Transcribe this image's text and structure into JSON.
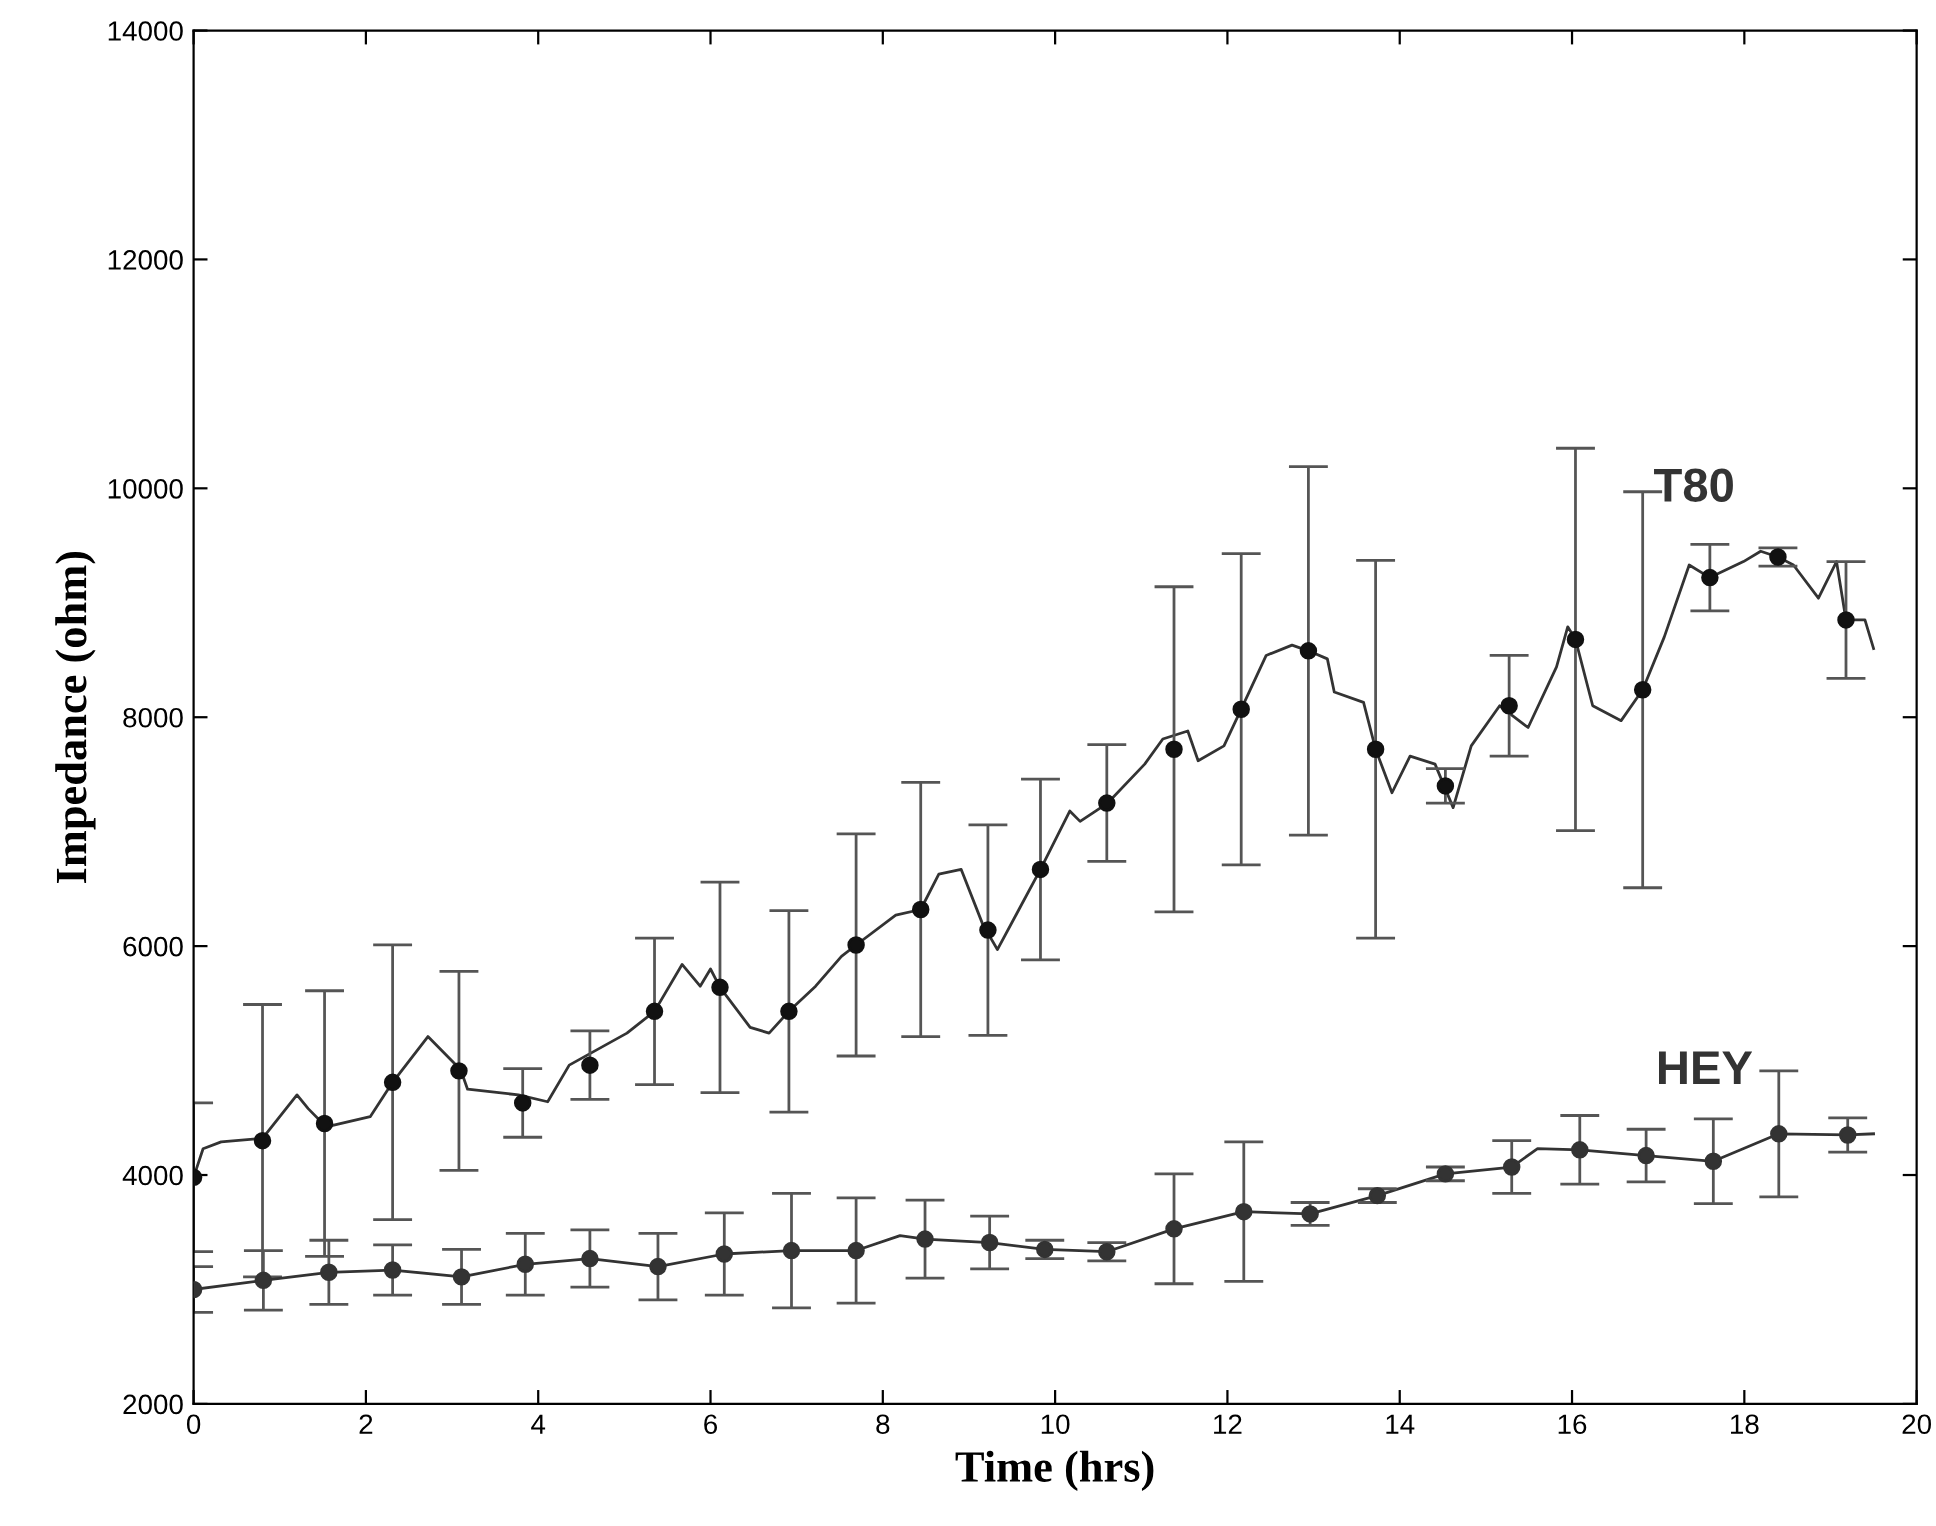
{
  "chart_data": {
    "type": "line",
    "xlabel": "Time (hrs)",
    "ylabel": "Impedance (ohm)",
    "xlim": [
      0,
      20
    ],
    "ylim": [
      2000,
      14000
    ],
    "xticks": [
      0,
      2,
      4,
      6,
      8,
      10,
      12,
      14,
      16,
      18,
      20
    ],
    "yticks": [
      2000,
      4000,
      6000,
      8000,
      10000,
      12000,
      14000
    ],
    "grid": false,
    "legend": false,
    "series": [
      {
        "name": "T80",
        "color": "#333333",
        "marker": "none",
        "x": [
          0,
          0.11,
          0.32,
          0.8,
          1.2,
          1.33,
          1.54,
          2.05,
          2.31,
          2.72,
          3.1,
          3.18,
          3.77,
          4.11,
          4.36,
          5.03,
          5.35,
          5.67,
          5.88,
          6.0,
          6.11,
          6.46,
          6.68,
          6.91,
          7.22,
          7.52,
          7.69,
          8.15,
          8.44,
          8.65,
          8.91,
          9.16,
          9.33,
          9.58,
          9.83,
          10.17,
          10.29,
          10.61,
          11.04,
          11.25,
          11.54,
          11.66,
          11.96,
          12.16,
          12.45,
          12.75,
          12.94,
          13.16,
          13.24,
          13.58,
          13.72,
          13.91,
          14.12,
          14.41,
          14.62,
          14.83,
          15.16,
          15.49,
          15.82,
          15.95,
          16.04,
          16.24,
          16.57,
          16.82,
          17.07,
          17.36,
          17.6,
          17.99,
          18.19,
          18.39,
          18.57,
          18.86,
          19.07,
          19.18,
          19.4,
          19.5
        ],
        "values": [
          3980,
          4230,
          4290,
          4320,
          4700,
          4580,
          4420,
          4510,
          4810,
          5210,
          4920,
          4750,
          4700,
          4640,
          4960,
          5240,
          5430,
          5840,
          5650,
          5800,
          5640,
          5290,
          5240,
          5430,
          5650,
          5910,
          6010,
          6270,
          6320,
          6630,
          6670,
          6190,
          5970,
          6320,
          6670,
          7180,
          7090,
          7250,
          7590,
          7810,
          7880,
          7620,
          7750,
          8070,
          8540,
          8630,
          8580,
          8510,
          8220,
          8130,
          7720,
          7340,
          7660,
          7590,
          7210,
          7750,
          8100,
          7910,
          8440,
          8790,
          8680,
          8100,
          7970,
          8240,
          8700,
          9330,
          9220,
          9360,
          9450,
          9400,
          9330,
          9040,
          9360,
          8850,
          8850,
          8600
        ]
      },
      {
        "type": "scatter",
        "color": "#111111",
        "marker": "circle",
        "x": [
          0,
          0.8,
          1.52,
          2.31,
          3.08,
          3.82,
          4.6,
          5.35,
          6.11,
          6.91,
          7.69,
          8.44,
          9.22,
          9.83,
          10.6,
          11.38,
          12.16,
          12.94,
          13.72,
          14.53,
          15.27,
          16.04,
          16.82,
          17.6,
          18.39,
          19.18
        ],
        "values": [
          3980,
          4300,
          4450,
          4810,
          4910,
          4630,
          4960,
          5430,
          5640,
          5430,
          6010,
          6320,
          6140,
          6670,
          7250,
          7720,
          8070,
          8580,
          7720,
          7400,
          8100,
          8680,
          8240,
          9220,
          9400,
          8850
        ],
        "errors": [
          650,
          1190,
          1160,
          1200,
          870,
          300,
          300,
          640,
          920,
          880,
          970,
          1110,
          920,
          790,
          510,
          1420,
          1360,
          1610,
          1650,
          150,
          440,
          1670,
          1730,
          290,
          80,
          510
        ]
      },
      {
        "name": "HEY",
        "color": "#333333",
        "marker": "none",
        "x": [
          0,
          0.81,
          1.57,
          2.31,
          3.11,
          3.85,
          4.6,
          5.39,
          6.16,
          6.94,
          7.69,
          8.2,
          8.49,
          9.24,
          9.88,
          10.6,
          11.38,
          12.19,
          12.96,
          13.74,
          14.53,
          15.3,
          15.6,
          16.09,
          16.86,
          17.64,
          18.4,
          19.2,
          19.5
        ],
        "values": [
          3000,
          3080,
          3150,
          3170,
          3110,
          3220,
          3270,
          3200,
          3310,
          3340,
          3340,
          3470,
          3440,
          3410,
          3350,
          3330,
          3530,
          3680,
          3660,
          3820,
          4010,
          4070,
          4230,
          4220,
          4170,
          4120,
          4360,
          4350,
          4360
        ]
      },
      {
        "type": "scatter",
        "color": "#333333",
        "marker": "circle",
        "x": [
          0,
          0.81,
          1.57,
          2.31,
          3.11,
          3.85,
          4.6,
          5.39,
          6.16,
          6.94,
          7.69,
          8.49,
          9.24,
          9.88,
          10.6,
          11.38,
          12.19,
          12.96,
          13.74,
          14.53,
          15.3,
          16.09,
          16.86,
          17.64,
          18.4,
          19.2
        ],
        "values": [
          3000,
          3080,
          3150,
          3170,
          3110,
          3220,
          3270,
          3200,
          3310,
          3340,
          3340,
          3440,
          3410,
          3350,
          3330,
          3530,
          3680,
          3660,
          3820,
          4010,
          4070,
          4220,
          4170,
          4120,
          4360,
          4350
        ],
        "errors": [
          200,
          260,
          280,
          220,
          240,
          270,
          250,
          290,
          360,
          500,
          460,
          340,
          230,
          80,
          80,
          480,
          610,
          100,
          60,
          60,
          230,
          300,
          230,
          370,
          550,
          150
        ]
      }
    ]
  }
}
